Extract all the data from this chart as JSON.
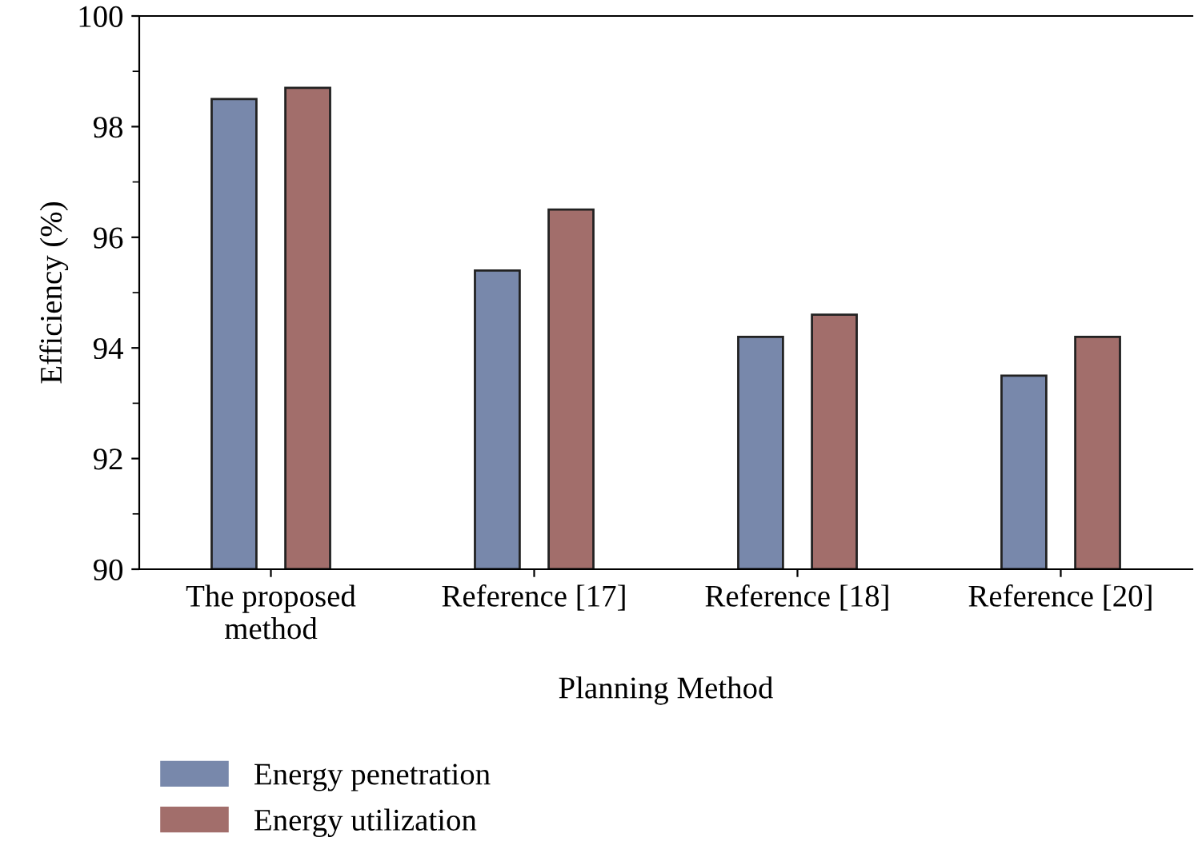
{
  "chart_data": {
    "type": "bar",
    "xlabel": "Planning Method",
    "ylabel": "Efficiency (%)",
    "categories": [
      "The proposed\nmethod",
      "Reference [17]",
      "Reference [18]",
      "Reference [20]"
    ],
    "series": [
      {
        "name": "Energy penetration",
        "color": "#7888ab",
        "values": [
          98.5,
          95.4,
          94.2,
          93.5
        ]
      },
      {
        "name": "Energy utilization",
        "color": "#a26e6b",
        "values": [
          98.7,
          96.5,
          94.6,
          94.2
        ]
      }
    ],
    "ylim": [
      90,
      100
    ],
    "yticks": [
      90,
      92,
      94,
      96,
      98,
      100
    ],
    "grid": false,
    "legend": "bottom left"
  }
}
